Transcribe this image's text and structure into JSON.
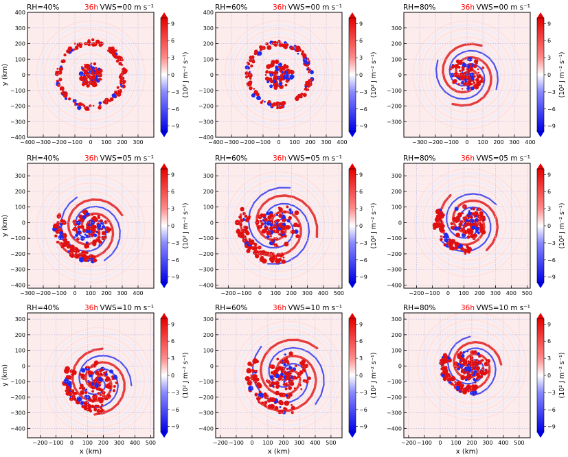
{
  "colors": {
    "positive": "#e01010",
    "negative": "#1f2bf0",
    "background_tint": "#fdecec",
    "time_label": "#ff0000",
    "grid": "#b9b9e6"
  },
  "colorbar": {
    "ticks": [
      9,
      6,
      3,
      0,
      -3,
      -6,
      -9
    ],
    "tick_labels": [
      "9",
      "6",
      "3",
      "0",
      "−3",
      "−6",
      "−9"
    ],
    "label": "(10² J m⁻² s⁻¹)",
    "range": [
      -10,
      10
    ]
  },
  "chart_data": [
    {
      "type": "heatmap",
      "rh_label": "RH=40%",
      "time_label": "36h",
      "vws_label": "VWS=00 m s⁻¹",
      "xlabel": "",
      "ylabel": "y (km)",
      "xlim": [
        -400,
        400
      ],
      "ylim": [
        -400,
        400
      ],
      "xticks": [
        -400,
        -300,
        -200,
        -100,
        0,
        100,
        200,
        300
      ],
      "xtick_labels": [
        "−400",
        "−300",
        "−200",
        "−100",
        "0",
        "100",
        "200",
        "300"
      ],
      "yticks": [
        -400,
        -300,
        -200,
        -100,
        0,
        100,
        200,
        300,
        400
      ],
      "ytick_labels": [
        "−400",
        "−300",
        "−200",
        "−100",
        "0",
        "100",
        "200",
        "300",
        "400"
      ],
      "grid": true,
      "storm": {
        "cx": 0,
        "cy": 0,
        "pattern": "ring",
        "ring_radius": 210,
        "inner_radius": 70,
        "band_south": false
      }
    },
    {
      "type": "heatmap",
      "rh_label": "RH=60%",
      "time_label": "36h",
      "vws_label": "VWS=00 m s⁻¹",
      "xlabel": "",
      "ylabel": "",
      "xlim": [
        -400,
        400
      ],
      "ylim": [
        -400,
        400
      ],
      "xticks": [
        -400,
        -300,
        -200,
        -100,
        0,
        100,
        200,
        300,
        400
      ],
      "xtick_labels": [
        "−400",
        "−300",
        "−200",
        "−100",
        "0",
        "100",
        "200",
        "300",
        "400"
      ],
      "yticks": [
        -400,
        -300,
        -200,
        -100,
        0,
        100,
        200,
        300,
        400
      ],
      "ytick_labels": [
        "−400",
        "−300",
        "−200",
        "−100",
        "0",
        "100",
        "200",
        "300",
        "400"
      ],
      "grid": true,
      "storm": {
        "cx": 0,
        "cy": 0,
        "pattern": "ring",
        "ring_radius": 200,
        "inner_radius": 80,
        "band_south": false
      }
    },
    {
      "type": "heatmap",
      "rh_label": "RH=80%",
      "time_label": "36h",
      "vws_label": "VWS=00 m s⁻¹",
      "xlabel": "",
      "ylabel": "",
      "xlim": [
        -400,
        400
      ],
      "ylim": [
        -400,
        400
      ],
      "xticks": [
        -300,
        -200,
        -100,
        0,
        100,
        200,
        300,
        400
      ],
      "xtick_labels": [
        "−300",
        "−200",
        "−100",
        "0",
        "100",
        "200",
        "300",
        "400"
      ],
      "yticks": [
        -300,
        -200,
        -100,
        0,
        100,
        200,
        300
      ],
      "ytick_labels": [
        "−300",
        "−200",
        "−100",
        "0",
        "100",
        "200",
        "300"
      ],
      "grid": true,
      "storm": {
        "cx": 0,
        "cy": 0,
        "pattern": "spiral",
        "ring_radius": 190,
        "inner_radius": 110,
        "band_south": false
      }
    },
    {
      "type": "heatmap",
      "rh_label": "RH=40%",
      "time_label": "36h",
      "vws_label": "VWS=05 m s⁻¹",
      "xlabel": "",
      "ylabel": "y (km)",
      "xlim": [
        -300,
        500
      ],
      "ylim": [
        -420,
        380
      ],
      "xticks": [
        -300,
        -200,
        -100,
        0,
        100,
        200,
        300,
        400
      ],
      "xtick_labels": [
        "−300",
        "−200",
        "−100",
        "0",
        "100",
        "200",
        "300",
        "400"
      ],
      "yticks": [
        -400,
        -300,
        -200,
        -100,
        0,
        100,
        200,
        300
      ],
      "ytick_labels": [
        "−400",
        "−300",
        "−200",
        "−100",
        "0",
        "100",
        "200",
        "300"
      ],
      "grid": true,
      "storm": {
        "cx": 100,
        "cy": -40,
        "pattern": "spiral",
        "ring_radius": 200,
        "inner_radius": 120,
        "band_south": true
      }
    },
    {
      "type": "heatmap",
      "rh_label": "RH=60%",
      "time_label": "36h",
      "vws_label": "VWS=05 m s⁻¹",
      "xlabel": "",
      "ylabel": "",
      "xlim": [
        -280,
        520
      ],
      "ylim": [
        -420,
        380
      ],
      "xticks": [
        -200,
        -100,
        0,
        100,
        200,
        300,
        400,
        500
      ],
      "xtick_labels": [
        "−200",
        "−100",
        "0",
        "100",
        "200",
        "300",
        "400",
        "500"
      ],
      "yticks": [
        -400,
        -300,
        -200,
        -100,
        0,
        100,
        200,
        300
      ],
      "ytick_labels": [
        "−400",
        "−300",
        "−200",
        "−100",
        "0",
        "100",
        "200",
        "300"
      ],
      "grid": true,
      "storm": {
        "cx": 120,
        "cy": -20,
        "pattern": "spiral",
        "ring_radius": 230,
        "inner_radius": 140,
        "band_south": true
      }
    },
    {
      "type": "heatmap",
      "rh_label": "RH=80%",
      "time_label": "36h",
      "vws_label": "VWS=05 m s⁻¹",
      "xlabel": "",
      "ylabel": "",
      "xlim": [
        -280,
        520
      ],
      "ylim": [
        -420,
        380
      ],
      "xticks": [
        -200,
        -100,
        0,
        100,
        200,
        300,
        400,
        500
      ],
      "xtick_labels": [
        "−200",
        "−100",
        "0",
        "100",
        "200",
        "300",
        "400",
        "500"
      ],
      "yticks": [
        -400,
        -300,
        -200,
        -100,
        0,
        100,
        200,
        300
      ],
      "ytick_labels": [
        "−400",
        "−300",
        "−200",
        "−100",
        "0",
        "100",
        "200",
        "300"
      ],
      "grid": true,
      "storm": {
        "cx": 130,
        "cy": 0,
        "pattern": "spiral",
        "ring_radius": 190,
        "inner_radius": 120,
        "band_south": true
      }
    },
    {
      "type": "heatmap",
      "rh_label": "RH=40%",
      "time_label": "36h",
      "vws_label": "VWS=10 m s⁻¹",
      "xlabel": "x (km)",
      "ylabel": "y (km)",
      "xlim": [
        -280,
        520
      ],
      "ylim": [
        -460,
        340
      ],
      "xticks": [
        -200,
        -100,
        0,
        100,
        200,
        300,
        400,
        500
      ],
      "xtick_labels": [
        "−200",
        "−100",
        "0",
        "100",
        "200",
        "300",
        "400",
        "500"
      ],
      "yticks": [
        -400,
        -300,
        -200,
        -100,
        0,
        100,
        200,
        300
      ],
      "ytick_labels": [
        "−400",
        "−300",
        "−200",
        "−100",
        "0",
        "100",
        "200",
        "300"
      ],
      "grid": true,
      "storm": {
        "cx": 170,
        "cy": -100,
        "pattern": "spiral",
        "ring_radius": 190,
        "inner_radius": 130,
        "band_south": true
      }
    },
    {
      "type": "heatmap",
      "rh_label": "RH=60%",
      "time_label": "36h",
      "vws_label": "VWS=10 m s⁻¹",
      "xlabel": "x (km)",
      "ylabel": "",
      "xlim": [
        -230,
        570
      ],
      "ylim": [
        -460,
        340
      ],
      "xticks": [
        -200,
        -100,
        0,
        100,
        200,
        300,
        400,
        500
      ],
      "xtick_labels": [
        "−200",
        "−100",
        "0",
        "100",
        "200",
        "300",
        "400",
        "500"
      ],
      "yticks": [
        -400,
        -300,
        -200,
        -100,
        0,
        100,
        200,
        300
      ],
      "ytick_labels": [
        "−400",
        "−300",
        "−200",
        "−100",
        "0",
        "100",
        "200",
        "300"
      ],
      "grid": true,
      "storm": {
        "cx": 230,
        "cy": -60,
        "pattern": "spiral",
        "ring_radius": 230,
        "inner_radius": 140,
        "band_south": true
      }
    },
    {
      "type": "heatmap",
      "rh_label": "RH=80%",
      "time_label": "36h",
      "vws_label": "VWS=10 m s⁻¹",
      "xlabel": "x (km)",
      "ylabel": "",
      "xlim": [
        -230,
        570
      ],
      "ylim": [
        -460,
        340
      ],
      "xticks": [
        -200,
        -100,
        0,
        100,
        200,
        300,
        400,
        500
      ],
      "xtick_labels": [
        "−200",
        "−100",
        "0",
        "100",
        "200",
        "300",
        "400",
        "500"
      ],
      "yticks": [
        -400,
        -300,
        -200,
        -100,
        0,
        100,
        200,
        300
      ],
      "ytick_labels": [
        "−400",
        "−300",
        "−200",
        "−100",
        "0",
        "100",
        "200",
        "300"
      ],
      "grid": true,
      "storm": {
        "cx": 200,
        "cy": 0,
        "pattern": "spiral",
        "ring_radius": 170,
        "inner_radius": 110,
        "band_south": true
      }
    }
  ]
}
